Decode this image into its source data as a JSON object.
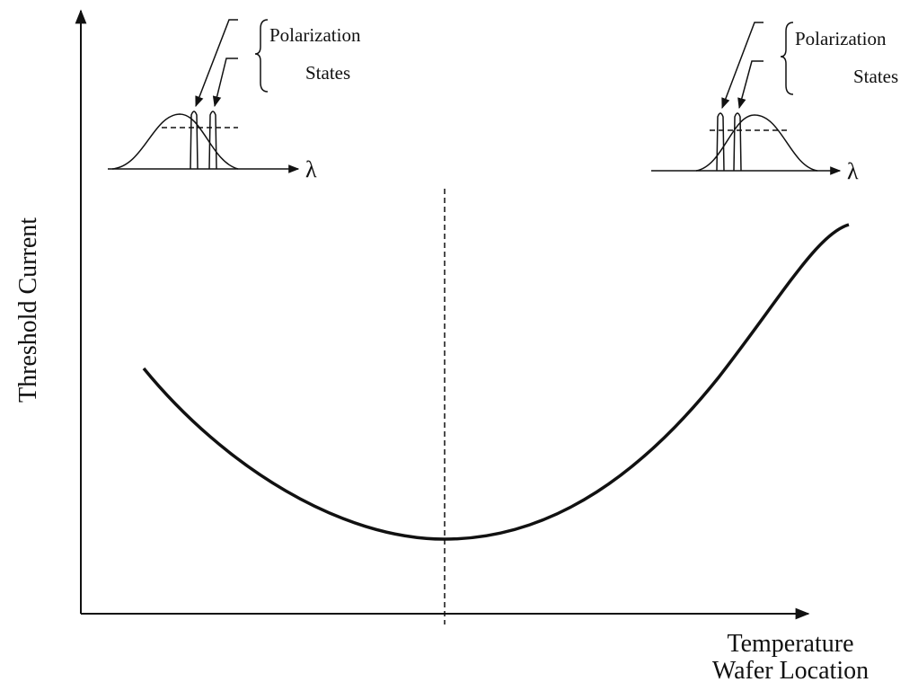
{
  "axes": {
    "y_label": "Threshold Current",
    "x_label": [
      "Temperature",
      "Wafer Location"
    ]
  },
  "insets": [
    {
      "brace_label": [
        "Polarization",
        "States"
      ],
      "axis_label": "λ"
    },
    {
      "brace_label": [
        "Polarization",
        "States"
      ],
      "axis_label": "λ"
    }
  ]
}
